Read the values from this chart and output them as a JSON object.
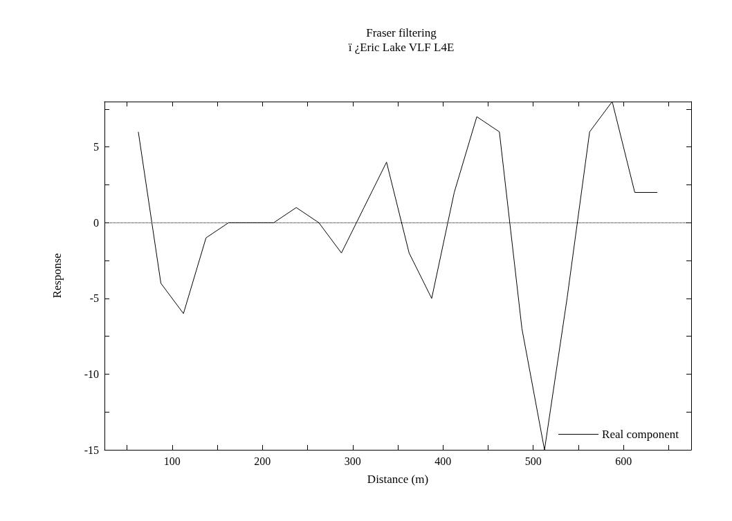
{
  "chart_data": {
    "type": "line",
    "title": "Fraser filtering",
    "subtitle": "ï ¿Eric Lake VLF L4E",
    "xlabel": "Distance (m)",
    "ylabel": "Response",
    "x": [
      62.5,
      87.5,
      112.5,
      137.5,
      162.5,
      187.5,
      212.5,
      237.5,
      262.5,
      287.5,
      312.5,
      337.5,
      362.5,
      387.5,
      412.5,
      437.5,
      462.5,
      487.5,
      512.5,
      537.5,
      562.5,
      587.5,
      612.5,
      637.5
    ],
    "series": [
      {
        "name": "Real component",
        "color": "#000000",
        "values": [
          6,
          -4,
          -6,
          -1,
          0,
          0,
          0,
          1,
          0,
          -2,
          1,
          4,
          -2,
          -5,
          2,
          7,
          6,
          -7,
          -15,
          -5,
          6,
          8,
          2,
          2
        ]
      }
    ],
    "xlim": [
      25,
      675
    ],
    "xticks": [
      {
        "value": 50,
        "label": null
      },
      100,
      {
        "value": 150,
        "label": null
      },
      200,
      {
        "value": 250,
        "label": null
      },
      300,
      {
        "value": 350,
        "label": null
      },
      400,
      {
        "value": 450,
        "label": null
      },
      500,
      {
        "value": 550,
        "label": null
      },
      600,
      {
        "value": 650,
        "label": null
      }
    ],
    "ylim": [
      -15,
      8
    ],
    "yticks": [
      -15,
      {
        "value": -12.5,
        "label": null
      },
      -10,
      {
        "value": -7.5,
        "label": null
      },
      -5,
      {
        "value": -2.5,
        "label": null
      },
      0,
      {
        "value": 2.5,
        "label": null
      },
      5,
      {
        "value": 7.5,
        "label": null
      }
    ],
    "ref_lines": [
      {
        "axis": "y",
        "value": 0,
        "color": "#000000",
        "line_style": "dotted"
      }
    ],
    "legend": "bottom right",
    "grid": false,
    "marker": "none",
    "line_style": "solid"
  }
}
